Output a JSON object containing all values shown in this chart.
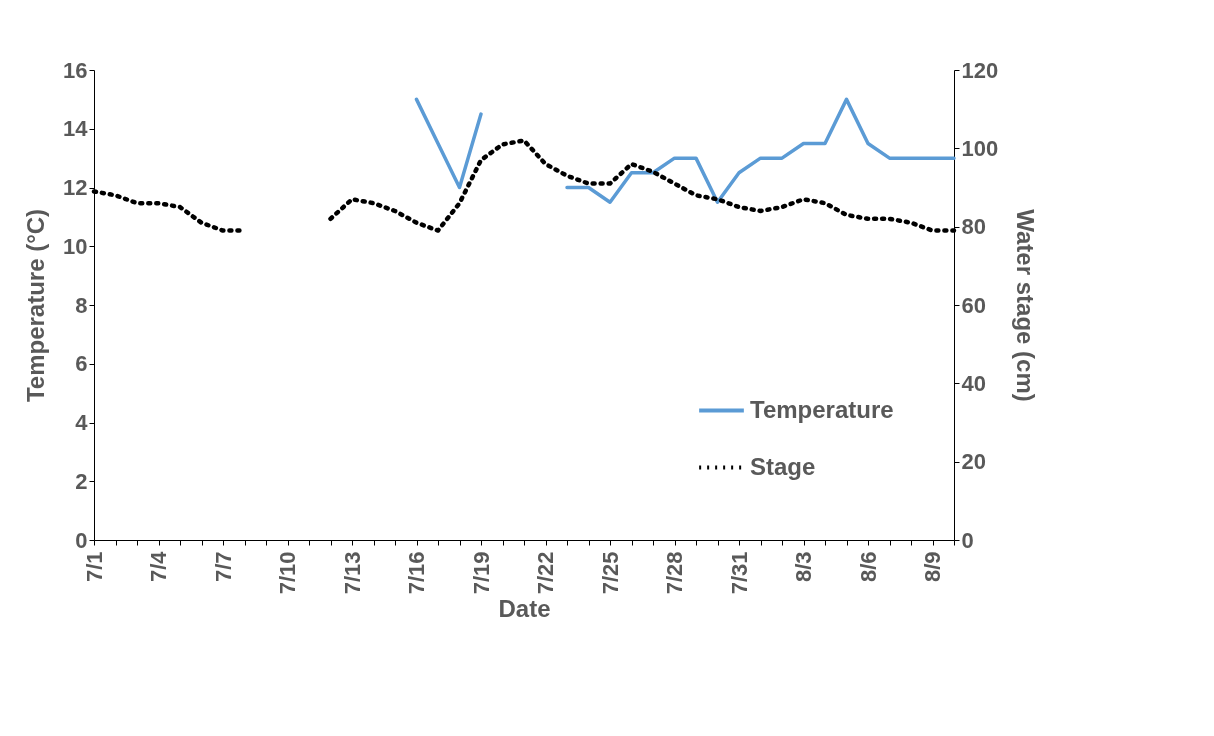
{
  "chart_data": {
    "type": "line",
    "xlabel": "Date",
    "ylabel": "Temperature (°C)",
    "y2label": "Water stage (cm)",
    "categories": [
      "7/1",
      null,
      null,
      "7/4",
      null,
      null,
      "7/7",
      null,
      null,
      "7/10",
      null,
      null,
      "7/13",
      null,
      null,
      "7/16",
      null,
      null,
      "7/19",
      null,
      null,
      "7/22",
      null,
      null,
      "7/25",
      null,
      null,
      "7/28",
      null,
      null,
      "7/31",
      null,
      null,
      "8/3",
      null,
      null,
      "8/6",
      null,
      null,
      "8/9",
      null
    ],
    "series": [
      {
        "name": "Temperature",
        "color": "#5b9bd5",
        "line_style": "solid",
        "values": [
          null,
          null,
          null,
          null,
          null,
          null,
          null,
          null,
          null,
          null,
          null,
          null,
          null,
          null,
          null,
          15,
          13.5,
          12,
          14.5,
          null,
          null,
          null,
          12,
          12,
          11.5,
          12.5,
          12.5,
          13,
          13,
          11.5,
          12.5,
          13,
          13,
          13.5,
          13.5,
          15,
          13.5,
          13,
          13,
          13,
          13
        ]
      },
      {
        "name": "Stage",
        "color": "#000000",
        "line_style": "dotted",
        "axis": "y2",
        "values": [
          89,
          88,
          86,
          86,
          85,
          81,
          79,
          79,
          null,
          null,
          null,
          82,
          87,
          86,
          84,
          81,
          79,
          86,
          97,
          101,
          102,
          96,
          93,
          91,
          91,
          96,
          94,
          91,
          88,
          87,
          85,
          84,
          85,
          87,
          86,
          83,
          82,
          82,
          81,
          79,
          79
        ]
      }
    ],
    "ylim": [
      0,
      16
    ],
    "yticks": [
      0,
      2,
      4,
      6,
      8,
      10,
      12,
      14,
      16
    ],
    "y2lim": [
      0,
      120
    ],
    "y2ticks": [
      0,
      20,
      40,
      60,
      80,
      100,
      120
    ],
    "grid": false,
    "legend": "bottom right"
  }
}
